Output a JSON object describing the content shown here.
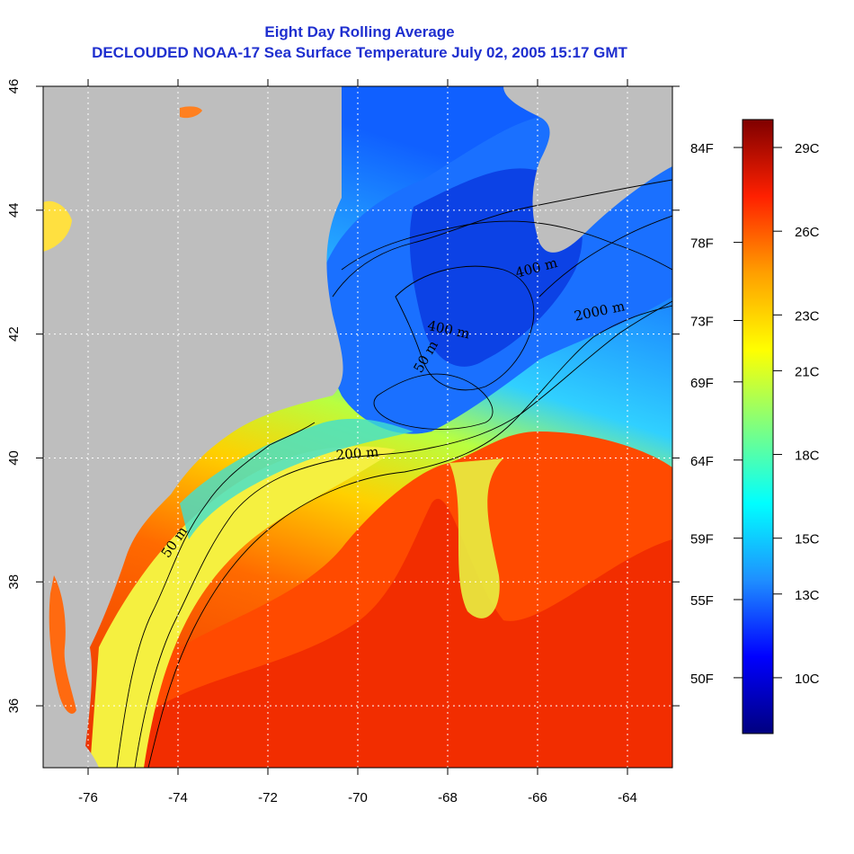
{
  "title": "Eight Day Rolling Average",
  "subtitle": "DECLOUDED NOAA-17 Sea Surface Temperature July 02, 2005 15:17 GMT",
  "chart_data": {
    "type": "heatmap",
    "xlim": [
      -77,
      -63
    ],
    "ylim": [
      35,
      46
    ],
    "x_ticks": [
      "-76",
      "-74",
      "-72",
      "-70",
      "-68",
      "-66",
      "-64"
    ],
    "y_ticks": [
      "36",
      "38",
      "40",
      "42",
      "44",
      "46"
    ],
    "grid": true,
    "fahrenheit_labels": [
      {
        "label": "84F",
        "celsius": 29
      },
      {
        "label": "78F",
        "celsius": 25.6
      },
      {
        "label": "73F",
        "celsius": 22.8
      },
      {
        "label": "69F",
        "celsius": 20.6
      },
      {
        "label": "64F",
        "celsius": 17.8
      },
      {
        "label": "59F",
        "celsius": 15
      },
      {
        "label": "55F",
        "celsius": 12.8
      },
      {
        "label": "50F",
        "celsius": 10
      }
    ],
    "celsius_labels": [
      {
        "label": "29C",
        "celsius": 29
      },
      {
        "label": "26C",
        "celsius": 26
      },
      {
        "label": "23C",
        "celsius": 23
      },
      {
        "label": "21C",
        "celsius": 21
      },
      {
        "label": "18C",
        "celsius": 18
      },
      {
        "label": "15C",
        "celsius": 15
      },
      {
        "label": "13C",
        "celsius": 13
      },
      {
        "label": "10C",
        "celsius": 10
      }
    ],
    "colorbar_range_celsius": [
      8,
      30
    ],
    "colorbar_colors": [
      "#00007f",
      "#0000ff",
      "#1f8fff",
      "#00ffff",
      "#7fff7f",
      "#ffff00",
      "#ff9f00",
      "#ff2000",
      "#7f0000"
    ],
    "land_color": "#bebebe",
    "contour_labels": [
      {
        "label": "400 m",
        "lon": -66.0,
        "lat": 43.0,
        "angle": -15
      },
      {
        "label": "2000 m",
        "lon": -64.6,
        "lat": 42.3,
        "angle": -12
      },
      {
        "label": "400 m",
        "lon": -68.0,
        "lat": 42.0,
        "angle": 12
      },
      {
        "label": "50 m",
        "lon": -68.4,
        "lat": 41.6,
        "angle": -60
      },
      {
        "label": "200 m",
        "lon": -70.0,
        "lat": 40.0,
        "angle": -5
      },
      {
        "label": "50 m",
        "lon": -74.0,
        "lat": 38.6,
        "angle": -55
      }
    ]
  }
}
